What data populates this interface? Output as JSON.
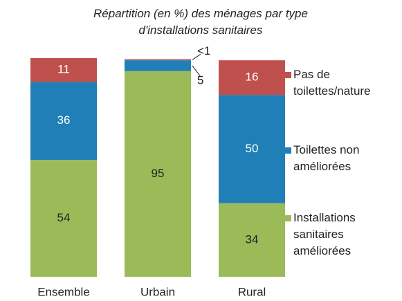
{
  "chart_data": {
    "type": "stacked_bar",
    "title": "Répartition (en %) des ménages par type d'installations sanitaires",
    "categories": [
      "Ensemble",
      "Urbain",
      "Rural"
    ],
    "series": [
      {
        "name": "Installations sanitaires améliorées",
        "color": "#9bbb59",
        "values": [
          54,
          95,
          34
        ]
      },
      {
        "name": "Toilettes non améliorées",
        "color": "#1f7fb6",
        "values": [
          36,
          5,
          50
        ]
      },
      {
        "name": "Pas de toilettes/nature",
        "color": "#c0504d",
        "values": [
          11,
          0.5,
          16
        ],
        "value_labels": [
          "11",
          "<1",
          "16"
        ]
      }
    ],
    "ylim": [
      0,
      101
    ]
  }
}
